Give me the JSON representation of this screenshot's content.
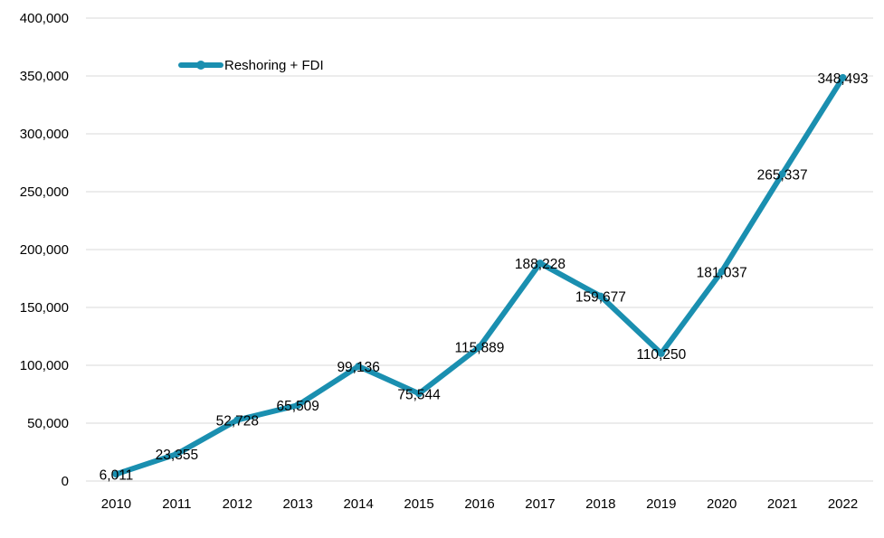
{
  "chart_data": {
    "type": "line",
    "title": "",
    "xlabel": "",
    "ylabel": "",
    "categories": [
      "2010",
      "2011",
      "2012",
      "2013",
      "2014",
      "2015",
      "2016",
      "2017",
      "2018",
      "2019",
      "2020",
      "2021",
      "2022"
    ],
    "series": [
      {
        "name": "Reshoring + FDI",
        "color": "#1a8fb0",
        "values": [
          6011,
          23355,
          52728,
          65509,
          99136,
          75544,
          115889,
          188228,
          159677,
          110250,
          181037,
          265337,
          348493
        ],
        "value_labels": [
          "6,011",
          "23,355",
          "52,728",
          "65,509",
          "99,136",
          "75,544",
          "115,889",
          "188,228",
          "159,677",
          "110,250",
          "181,037",
          "265,337",
          "348,493"
        ]
      }
    ],
    "ylim": [
      0,
      400000
    ],
    "yticks": [
      0,
      50000,
      100000,
      150000,
      200000,
      250000,
      300000,
      350000,
      400000
    ],
    "ytick_labels": [
      "0",
      "50,000",
      "100,000",
      "150,000",
      "200,000",
      "250,000",
      "300,000",
      "350,000",
      "400,000"
    ],
    "grid": true,
    "legend_position": "top-left",
    "gridline_color": "#d9d9d9"
  }
}
